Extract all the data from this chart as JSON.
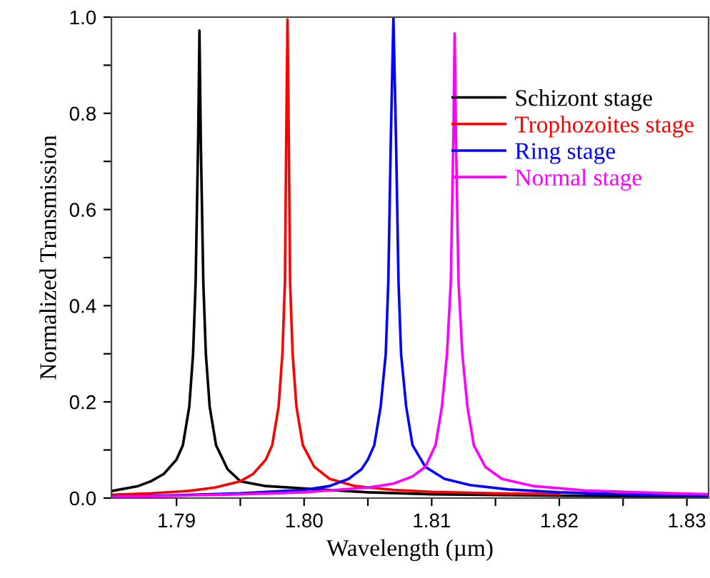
{
  "chart_data": {
    "type": "line",
    "xlabel": "Wavelength (µm)",
    "ylabel": "Normalized Transmission",
    "xlim": [
      1.7849,
      1.8317
    ],
    "ylim": [
      0,
      1.0
    ],
    "xticks": [
      1.79,
      {
        "value": 1.795,
        "label": null
      },
      {
        "value": 1.8,
        "label": "1.80"
      },
      {
        "value": 1.805,
        "label": null
      },
      1.81,
      {
        "value": 1.815,
        "label": null
      },
      1.82,
      {
        "value": 1.825,
        "label": null
      },
      1.83
    ],
    "yticks": [
      {
        "value": 0,
        "label": "0.0"
      },
      {
        "value": 0.1,
        "label": null
      },
      0.2,
      {
        "value": 0.3,
        "label": null
      },
      0.4,
      {
        "value": 0.5,
        "label": null
      },
      0.6,
      {
        "value": 0.7,
        "label": null
      },
      0.8,
      {
        "value": 0.9,
        "label": null
      },
      {
        "value": 1,
        "label": "1.0"
      }
    ],
    "grid": false,
    "legend": "top right",
    "marker": "none",
    "line_style": "solid",
    "series": [
      {
        "name": "Schizont stage",
        "color": "#000000",
        "x": [
          1.785,
          1.787,
          1.788,
          1.789,
          1.79,
          1.7905,
          1.791,
          1.7913,
          1.7915,
          1.7917,
          1.7918,
          1.7919,
          1.7921,
          1.7923,
          1.7926,
          1.7931,
          1.794,
          1.795,
          1.797,
          1.8,
          1.805,
          1.81,
          1.82,
          1.8317
        ],
        "values": [
          0.015,
          0.025,
          0.035,
          0.05,
          0.08,
          0.11,
          0.19,
          0.3,
          0.45,
          0.75,
          0.972,
          0.75,
          0.45,
          0.3,
          0.19,
          0.11,
          0.06,
          0.035,
          0.025,
          0.02,
          0.012,
          0.008,
          0.005,
          0.003
        ]
      },
      {
        "name": "Trophozoites stage",
        "color": "#ff0000",
        "x": [
          1.785,
          1.788,
          1.791,
          1.793,
          1.795,
          1.796,
          1.797,
          1.7975,
          1.798,
          1.7983,
          1.7985,
          1.7986,
          1.7987,
          1.7988,
          1.7989,
          1.7991,
          1.7994,
          1.7999,
          1.8008,
          1.802,
          1.804,
          1.807,
          1.81,
          1.815,
          1.82
        ],
        "values": [
          0.007,
          0.01,
          0.015,
          0.022,
          0.035,
          0.05,
          0.08,
          0.11,
          0.19,
          0.3,
          0.45,
          0.75,
          0.995,
          0.75,
          0.45,
          0.3,
          0.19,
          0.11,
          0.065,
          0.04,
          0.025,
          0.017,
          0.013,
          0.01,
          0.008
        ]
      },
      {
        "name": "Ring stage",
        "color": "#0000ff",
        "x": [
          1.785,
          1.79,
          1.795,
          1.8,
          1.802,
          1.8035,
          1.8045,
          1.805,
          1.8055,
          1.806,
          1.8064,
          1.8066,
          1.8068,
          1.807,
          1.8072,
          1.8074,
          1.8076,
          1.808,
          1.8085,
          1.8095,
          1.811,
          1.813,
          1.816,
          1.82,
          1.825,
          1.8317
        ],
        "values": [
          0.004,
          0.006,
          0.01,
          0.017,
          0.025,
          0.04,
          0.06,
          0.08,
          0.11,
          0.19,
          0.3,
          0.45,
          0.75,
          1.0,
          0.75,
          0.45,
          0.3,
          0.19,
          0.11,
          0.065,
          0.04,
          0.027,
          0.018,
          0.012,
          0.008,
          0.005
        ]
      },
      {
        "name": "Normal stage",
        "color": "#ff00ff",
        "x": [
          1.785,
          1.79,
          1.795,
          1.8,
          1.805,
          1.807,
          1.8085,
          1.8095,
          1.8103,
          1.8108,
          1.8112,
          1.8115,
          1.8117,
          1.8118,
          1.8119,
          1.8121,
          1.8124,
          1.8128,
          1.8133,
          1.8142,
          1.8155,
          1.818,
          1.822,
          1.826,
          1.8317
        ],
        "values": [
          0.003,
          0.005,
          0.008,
          0.012,
          0.022,
          0.03,
          0.045,
          0.065,
          0.11,
          0.19,
          0.3,
          0.45,
          0.75,
          0.966,
          0.75,
          0.45,
          0.3,
          0.19,
          0.11,
          0.065,
          0.04,
          0.025,
          0.016,
          0.012,
          0.008
        ]
      }
    ]
  }
}
